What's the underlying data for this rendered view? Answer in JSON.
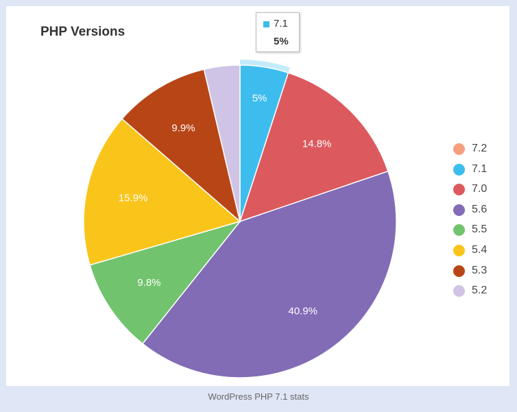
{
  "chart_data": {
    "type": "pie",
    "title": "PHP Versions",
    "categories": [
      "7.2",
      "7.1",
      "7.0",
      "5.6",
      "5.5",
      "5.4",
      "5.3",
      "5.2"
    ],
    "values": [
      0.0,
      5.0,
      14.8,
      40.9,
      9.8,
      15.9,
      9.9,
      3.7
    ],
    "labels": [
      "",
      "5%",
      "14.8%",
      "40.9%",
      "9.8%",
      "15.9%",
      "9.9%",
      ""
    ],
    "colors": [
      "#f4a07e",
      "#3dbdee",
      "#dc5a5e",
      "#826cb6",
      "#72c36e",
      "#f9c51b",
      "#b84516",
      "#cfc4e5"
    ],
    "legend_position": "right",
    "highlighted": {
      "label": "7.1",
      "value": "5%"
    }
  },
  "caption": "WordPress PHP 7.1 stats"
}
